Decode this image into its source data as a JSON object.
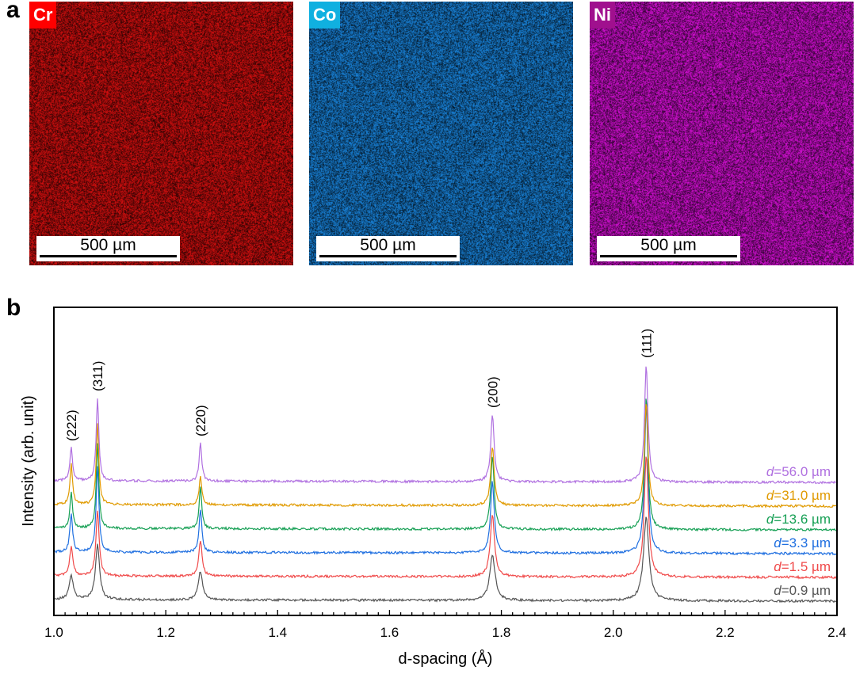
{
  "panel_a": {
    "letter": "a",
    "maps": [
      {
        "element": "Cr",
        "label_color": "#ff0000",
        "map_color": "#e01010",
        "scale_bar": "500 µm"
      },
      {
        "element": "Co",
        "label_color": "#10b0e0",
        "map_color": "#1a8ae6",
        "scale_bar": "500 µm"
      },
      {
        "element": "Ni",
        "label_color": "#a0108e",
        "map_color": "#e010e0",
        "scale_bar": "500 µm"
      }
    ]
  },
  "panel_b": {
    "letter": "b"
  },
  "chart_data": {
    "type": "line",
    "title": "",
    "xlabel": "d-spacing (Å)",
    "ylabel": "Intensity (arb. unit)",
    "xlim": [
      1.0,
      2.4
    ],
    "xticks": [
      "1.0",
      "1.2",
      "1.4",
      "1.6",
      "1.8",
      "2.0",
      "2.2",
      "2.4"
    ],
    "grid": false,
    "peaks": [
      {
        "label": "(222)",
        "d": 1.031
      },
      {
        "label": "(311)",
        "d": 1.078
      },
      {
        "label": "(220)",
        "d": 1.262
      },
      {
        "label": "(200)",
        "d": 1.784
      },
      {
        "label": "(111)",
        "d": 2.059
      }
    ],
    "series": [
      {
        "name": "d=0.9 µm",
        "prefix": "d",
        "value": "=0.9 µm",
        "color": "#555555",
        "offset": 0,
        "peak_heights": [
          1.0,
          2.3,
          1.2,
          1.9,
          3.5
        ],
        "peak_width": 0.0045
      },
      {
        "name": "d=1.5 µm",
        "prefix": "d",
        "value": "=1.5 µm",
        "color": "#f04a4a",
        "offset": 1,
        "peak_heights": [
          1.2,
          2.7,
          1.5,
          2.6,
          5.1
        ],
        "peak_width": 0.0035
      },
      {
        "name": "d=3.3 µm",
        "prefix": "d",
        "value": "=3.3 µm",
        "color": "#1f6fe0",
        "offset": 2,
        "peak_heights": [
          1.6,
          3.6,
          1.8,
          3.0,
          6.2
        ],
        "peak_width": 0.003
      },
      {
        "name": "d=13.6 µm",
        "prefix": "d",
        "value": "=13.6 µm",
        "color": "#17a055",
        "offset": 3,
        "peak_heights": [
          1.5,
          3.6,
          1.8,
          3.1,
          5.6
        ],
        "peak_width": 0.0028
      },
      {
        "name": "d=31.0 µm",
        "prefix": "d",
        "value": "=31.0 µm",
        "color": "#e09a00",
        "offset": 4,
        "peak_heights": [
          1.7,
          3.4,
          1.2,
          2.5,
          4.4
        ],
        "peak_width": 0.0028
      },
      {
        "name": "d=56.0 µm",
        "prefix": "d",
        "value": "=56.0 µm",
        "color": "#b070e0",
        "offset": 5,
        "peak_heights": [
          1.4,
          3.5,
          1.6,
          2.8,
          4.9
        ],
        "peak_width": 0.0028
      }
    ]
  }
}
